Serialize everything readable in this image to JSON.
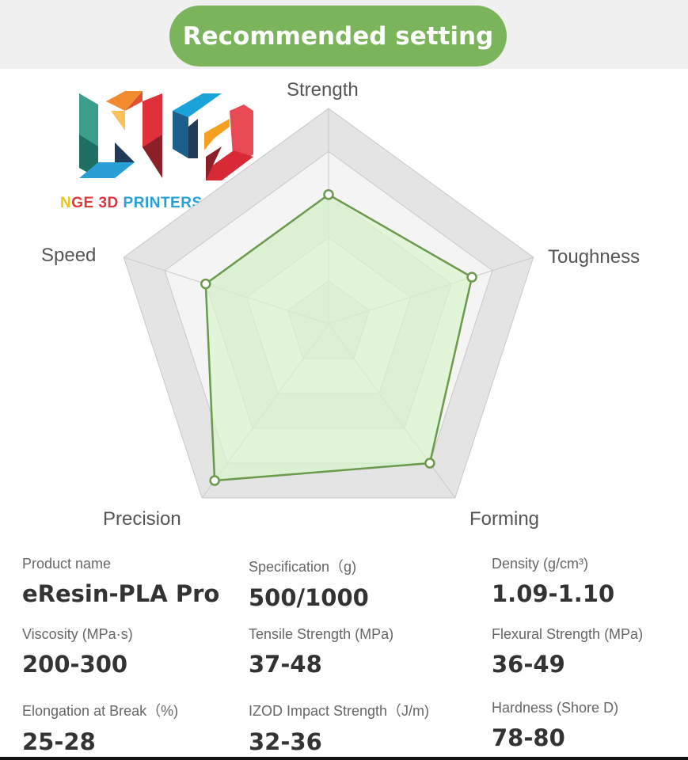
{
  "header": {
    "title": "Recommended setting"
  },
  "logo": {
    "text": "NGE 3D PRINTERS SERVICES",
    "colors": [
      "#e8c51a",
      "#e03a3a",
      "#2a9fd6",
      "#f28a2e",
      "#8bb832",
      "#1a9b8c"
    ]
  },
  "chart_data": {
    "type": "radar",
    "categories": [
      "Strength",
      "Toughness",
      "Forming",
      "Precision",
      "Speed"
    ],
    "values": [
      3.0,
      3.5,
      4.0,
      4.5,
      3.0
    ],
    "range": [
      0,
      5
    ],
    "levels": 5,
    "colors": {
      "line": "#6a9a4c",
      "fill": "#d8f5cc",
      "band_outer": "#e4e4e4",
      "band_inner": "#f4f4f4",
      "grid": "#c8c8c8"
    }
  },
  "specs": [
    {
      "label": "Product name",
      "value": "eResin-PLA Pro"
    },
    {
      "label": "Specification（g)",
      "value": "500/1000"
    },
    {
      "label": "Density (g/cm³)",
      "value": "1.09-1.10"
    },
    {
      "label": "Viscosity (MPa·s)",
      "value": "200-300"
    },
    {
      "label": "Tensile Strength (MPa)",
      "value": "37-48"
    },
    {
      "label": "Flexural Strength (MPa)",
      "value": "36-49"
    },
    {
      "label": "Elongation at Break（%)",
      "value": "25-28"
    },
    {
      "label": "IZOD Impact Strength（J/m)",
      "value": "32-36"
    },
    {
      "label": "Hardness (Shore D)",
      "value": "78-80"
    }
  ]
}
